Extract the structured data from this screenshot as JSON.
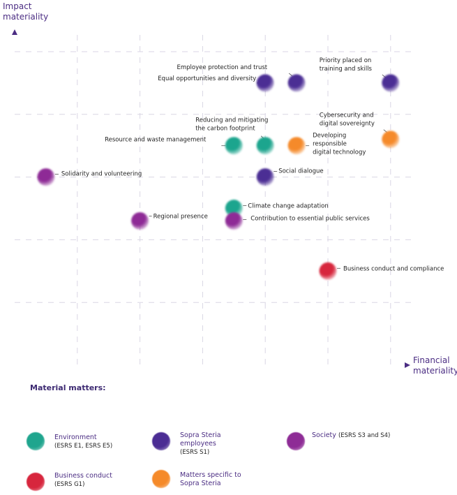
{
  "chart_data": {
    "type": "scatter",
    "title": "",
    "xlabel": "Financial materiality",
    "ylabel": "Impact materiality",
    "xlim": [
      0,
      6
    ],
    "ylim": [
      0,
      5
    ],
    "grid": true,
    "x_ticks": [
      1,
      2,
      3,
      4,
      5,
      6
    ],
    "y_ticks": [
      1,
      2,
      3,
      4,
      5
    ],
    "tick_labels_shown": false,
    "categories": {
      "environment": {
        "name": "Environment",
        "sub": "(ESRS E1, ESRS E5)",
        "color": "#1fa58e"
      },
      "employees": {
        "name": "Sopra Steria employees",
        "sub": "(ESRS S1)",
        "color": "#4b2d94"
      },
      "society": {
        "name": "Society",
        "sub": "(ESRS S3 and S4)",
        "color": "#8e2c96"
      },
      "business": {
        "name": "Business conduct",
        "sub": "(ESRS G1)",
        "color": "#d7263d"
      },
      "specific": {
        "name": "Matters specific to Sopra Steria",
        "sub": "",
        "color": "#f58a2a"
      }
    },
    "points": [
      {
        "label": "Equal opportunities and diversity",
        "category": "employees",
        "x": 4.0,
        "y": 4.5
      },
      {
        "label": "Employee protection and trust",
        "category": "employees",
        "x": 4.5,
        "y": 4.5
      },
      {
        "label": "Priority placed on training and skills",
        "category": "employees",
        "x": 6.0,
        "y": 4.5
      },
      {
        "label": "Resource and waste management",
        "category": "environment",
        "x": 3.5,
        "y": 3.5
      },
      {
        "label": "Reducing and mitigating the carbon footprint",
        "category": "environment",
        "x": 4.0,
        "y": 3.5
      },
      {
        "label": "Developing responsible digital technology",
        "category": "specific",
        "x": 4.5,
        "y": 3.5
      },
      {
        "label": "Cybersecurity and digital sovereignty",
        "category": "specific",
        "x": 6.0,
        "y": 3.6
      },
      {
        "label": "Solidarity and volunteering",
        "category": "society",
        "x": 0.5,
        "y": 3.0
      },
      {
        "label": "Social dialogue",
        "category": "employees",
        "x": 4.0,
        "y": 3.0
      },
      {
        "label": "Climate change adaptation",
        "category": "environment",
        "x": 3.5,
        "y": 2.5
      },
      {
        "label": "Contribution to essential public services",
        "category": "society",
        "x": 3.5,
        "y": 2.3
      },
      {
        "label": "Regional presence",
        "category": "society",
        "x": 2.0,
        "y": 2.3
      },
      {
        "label": "Business conduct and compliance",
        "category": "business",
        "x": 5.0,
        "y": 1.5
      }
    ]
  },
  "axes": {
    "y_title_line1": "Impact",
    "y_title_line2": "materiality",
    "x_title_line1": "Financial",
    "x_title_line2": "materiality"
  },
  "legend": {
    "title": "Material matters:",
    "items": [
      {
        "key": "environment",
        "name": "Environment",
        "sub": "(ESRS E1, ESRS E5)"
      },
      {
        "key": "employees",
        "name": "Sopra Steria employees",
        "sub": "(ESRS S1)"
      },
      {
        "key": "society",
        "name": "Society",
        "sub": "(ESRS S3 and S4)"
      },
      {
        "key": "business",
        "name": "Business conduct",
        "sub": "(ESRS G1)"
      },
      {
        "key": "specific",
        "name": "Matters specific to Sopra Steria",
        "sub": ""
      }
    ]
  }
}
